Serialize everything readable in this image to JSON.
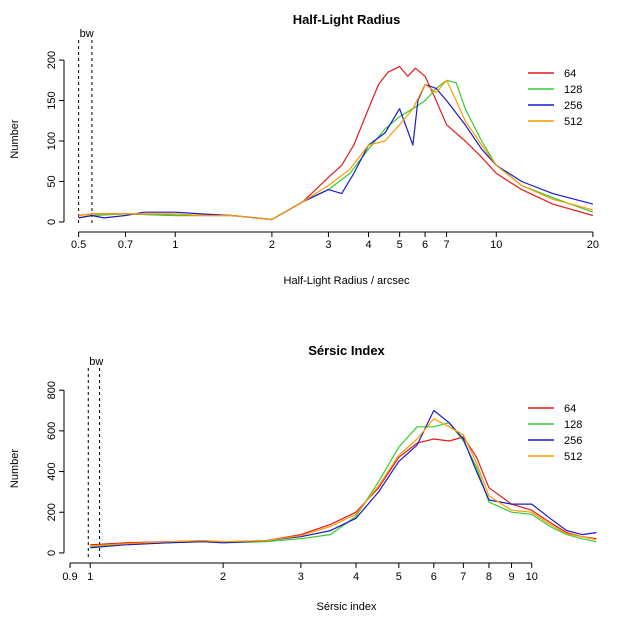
{
  "chart_data": [
    {
      "type": "line",
      "title": "Half-Light Radius",
      "xlabel": "Half-Light Radius / arcsec",
      "ylabel": "Number",
      "xscale": "log",
      "xlim": [
        0.47,
        21.5
      ],
      "ylim": [
        -5,
        210
      ],
      "xticks": [
        0.5,
        0.7,
        1,
        2,
        3,
        4,
        5,
        6,
        7,
        10,
        20
      ],
      "xtick_labels": [
        "0.5",
        "0.7",
        "1",
        "2",
        "3",
        "4",
        "5",
        "6",
        "7",
        "10",
        "20"
      ],
      "yticks": [
        0,
        50,
        100,
        150,
        200
      ],
      "ytick_labels": [
        "0",
        "50",
        "100",
        "150",
        "200"
      ],
      "annotation": "bw",
      "bw_lines": [
        0.5,
        0.55
      ],
      "legend_position": "top-right",
      "grid": false,
      "series": [
        {
          "name": "64",
          "color": "#e41a1c",
          "x": [
            0.5,
            0.55,
            0.7,
            1,
            1.2,
            1.5,
            2,
            2.5,
            3,
            3.3,
            3.6,
            4,
            4.3,
            4.6,
            5,
            5.3,
            5.6,
            6,
            6.5,
            7,
            8,
            9,
            10,
            12,
            15,
            20
          ],
          "y": [
            8,
            10,
            10,
            8,
            8,
            8,
            3,
            25,
            55,
            70,
            95,
            140,
            170,
            185,
            192,
            180,
            190,
            180,
            150,
            120,
            100,
            80,
            60,
            40,
            22,
            8
          ]
        },
        {
          "name": "128",
          "color": "#33cc33",
          "x": [
            0.5,
            0.55,
            0.7,
            1,
            1.2,
            1.5,
            2,
            2.5,
            3,
            3.5,
            4,
            4.5,
            5,
            5.5,
            6,
            6.5,
            7,
            7.5,
            8,
            9,
            10,
            12,
            15,
            20
          ],
          "y": [
            5,
            8,
            10,
            8,
            8,
            8,
            3,
            25,
            40,
            60,
            90,
            115,
            130,
            140,
            150,
            165,
            175,
            172,
            140,
            100,
            70,
            45,
            30,
            12
          ]
        },
        {
          "name": "256",
          "color": "#1a1acc",
          "x": [
            0.5,
            0.55,
            0.6,
            0.7,
            0.8,
            1,
            1.2,
            1.5,
            2,
            2.5,
            3,
            3.3,
            3.6,
            4,
            4.5,
            5,
            5.5,
            5.7,
            6,
            6.5,
            7,
            8,
            9,
            10,
            12,
            15,
            20
          ],
          "y": [
            5,
            8,
            5,
            8,
            12,
            12,
            10,
            8,
            3,
            25,
            40,
            35,
            60,
            95,
            110,
            140,
            95,
            150,
            170,
            165,
            150,
            120,
            90,
            70,
            50,
            35,
            22
          ]
        },
        {
          "name": "512",
          "color": "#ff9900",
          "x": [
            0.5,
            0.55,
            0.7,
            1,
            1.2,
            1.5,
            2,
            2.5,
            3,
            3.5,
            4,
            4.5,
            5,
            5.5,
            6,
            6.5,
            7,
            7.5,
            8,
            9,
            10,
            12,
            15,
            20
          ],
          "y": [
            8,
            10,
            10,
            10,
            8,
            8,
            3,
            25,
            45,
            65,
            95,
            100,
            120,
            140,
            170,
            160,
            175,
            150,
            125,
            95,
            70,
            45,
            28,
            15
          ]
        }
      ]
    },
    {
      "type": "line",
      "title": "Sérsic Index",
      "xlabel": "Sérsic index",
      "ylabel": "Number",
      "xscale": "log",
      "xlim": [
        0.9,
        14.5
      ],
      "ylim": [
        -20,
        850
      ],
      "xticks": [
        0.9,
        1,
        2,
        3,
        4,
        5,
        6,
        7,
        8,
        9,
        10
      ],
      "xtick_labels": [
        "0.9",
        "1",
        "2",
        "3",
        "4",
        "5",
        "6",
        "7",
        "8",
        "9",
        "10"
      ],
      "yticks": [
        0,
        200,
        400,
        600,
        800
      ],
      "ytick_labels": [
        "0",
        "200",
        "400",
        "600",
        "800"
      ],
      "annotation": "bw",
      "bw_lines": [
        0.99,
        1.05
      ],
      "legend_position": "top-right",
      "grid": false,
      "series": [
        {
          "name": "64",
          "color": "#e41a1c",
          "x": [
            1,
            1.2,
            1.5,
            1.8,
            2,
            2.5,
            3,
            3.5,
            4,
            4.5,
            5,
            5.5,
            6,
            6.5,
            7,
            7.5,
            8,
            9,
            10,
            11,
            12,
            13,
            14
          ],
          "y": [
            40,
            50,
            55,
            60,
            55,
            60,
            90,
            140,
            200,
            320,
            470,
            540,
            560,
            550,
            570,
            470,
            320,
            240,
            210,
            150,
            100,
            80,
            70
          ]
        },
        {
          "name": "128",
          "color": "#33cc33",
          "x": [
            1,
            1.2,
            1.5,
            1.8,
            2,
            2.5,
            3,
            3.5,
            4,
            4.5,
            5,
            5.5,
            6,
            6.5,
            7,
            7.5,
            8,
            9,
            10,
            11,
            12,
            13,
            14
          ],
          "y": [
            30,
            45,
            50,
            55,
            50,
            55,
            70,
            90,
            180,
            350,
            520,
            620,
            620,
            640,
            550,
            420,
            250,
            200,
            190,
            130,
            90,
            70,
            55
          ]
        },
        {
          "name": "256",
          "color": "#1a1acc",
          "x": [
            1,
            1.2,
            1.5,
            1.8,
            2,
            2.5,
            3,
            3.5,
            4,
            4.5,
            5,
            5.5,
            6,
            6.5,
            7,
            7.5,
            8,
            9,
            10,
            11,
            12,
            13,
            14
          ],
          "y": [
            25,
            40,
            50,
            55,
            50,
            60,
            80,
            110,
            170,
            300,
            450,
            530,
            700,
            640,
            560,
            400,
            260,
            240,
            240,
            170,
            110,
            90,
            100
          ]
        },
        {
          "name": "512",
          "color": "#ff9900",
          "x": [
            1,
            1.2,
            1.5,
            1.8,
            2,
            2.5,
            3,
            3.5,
            4,
            4.5,
            5,
            5.5,
            6,
            6.5,
            7,
            7.5,
            8,
            9,
            10,
            11,
            12,
            13,
            14
          ],
          "y": [
            35,
            45,
            55,
            60,
            55,
            60,
            85,
            130,
            190,
            330,
            480,
            560,
            660,
            620,
            580,
            440,
            280,
            210,
            200,
            140,
            95,
            80,
            65
          ]
        }
      ]
    }
  ]
}
